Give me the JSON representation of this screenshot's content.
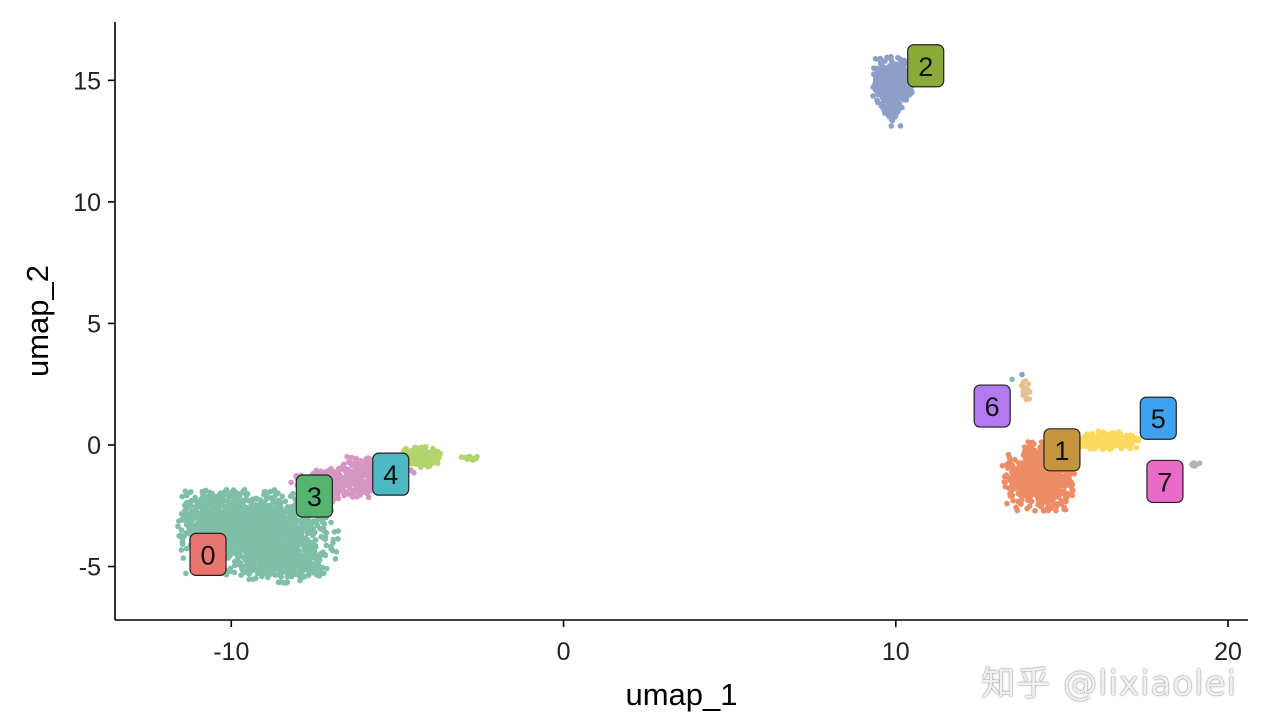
{
  "chart_data": {
    "type": "scatter",
    "title": "",
    "xlabel": "umap_1",
    "ylabel": "umap_2",
    "xlim": [
      -13.5,
      20.6
    ],
    "ylim": [
      -7.2,
      17.4
    ],
    "xticks": [
      -10,
      0,
      10,
      20
    ],
    "xtick_labels": [
      "-10",
      "0",
      "10",
      "20"
    ],
    "yticks": [
      -5,
      0,
      5,
      10,
      15
    ],
    "ytick_labels": [
      "-5",
      "0",
      "5",
      "10",
      "15"
    ],
    "grid": false,
    "legend": "none",
    "clusters": [
      {
        "label": "0",
        "color": "#7fbfa8",
        "label_x": -10.7,
        "label_y": -4.5,
        "blobs": [
          {
            "cx": -9.2,
            "cy": -3.6,
            "rx": 2.2,
            "ry": 1.6,
            "n": 1500
          },
          {
            "cx": -8.3,
            "cy": -4.8,
            "rx": 1.1,
            "ry": 0.8,
            "n": 350
          },
          {
            "cx": -10.6,
            "cy": -2.8,
            "rx": 0.8,
            "ry": 0.9,
            "n": 200
          }
        ]
      },
      {
        "label": "1",
        "color": "#ec8d66",
        "label_x": 15.0,
        "label_y": -0.2,
        "blobs": [
          {
            "cx": 14.3,
            "cy": -1.3,
            "rx": 1.0,
            "ry": 1.3,
            "n": 700
          },
          {
            "cx": 14.9,
            "cy": -0.3,
            "rx": 0.5,
            "ry": 0.4,
            "n": 120
          }
        ]
      },
      {
        "label": "2",
        "color": "#8d9fc8",
        "label_x": 10.9,
        "label_y": 15.6,
        "blobs": [
          {
            "cx": 9.9,
            "cy": 14.9,
            "rx": 0.55,
            "ry": 1.0,
            "n": 420
          },
          {
            "cx": 9.9,
            "cy": 13.7,
            "rx": 0.25,
            "ry": 0.55,
            "n": 60
          }
        ]
      },
      {
        "label": "3",
        "color": "#d696c4",
        "label_x": -7.5,
        "label_y": -2.1,
        "blobs": [
          {
            "cx": -6.8,
            "cy": -1.6,
            "rx": 1.3,
            "ry": 0.6,
            "n": 350
          },
          {
            "cx": -5.6,
            "cy": -1.0,
            "rx": 1.0,
            "ry": 0.5,
            "n": 250
          }
        ]
      },
      {
        "label": "4",
        "color": "#b2d46c",
        "label_x": -5.2,
        "label_y": -1.2,
        "blobs": [
          {
            "cx": -4.3,
            "cy": -0.5,
            "rx": 0.55,
            "ry": 0.4,
            "n": 200
          },
          {
            "cx": -2.8,
            "cy": -0.55,
            "rx": 0.3,
            "ry": 0.12,
            "n": 10
          }
        ]
      },
      {
        "label": "5",
        "color": "#fad95c",
        "label_x": 17.9,
        "label_y": 1.1,
        "blobs": [
          {
            "cx": 16.4,
            "cy": 0.2,
            "rx": 0.9,
            "ry": 0.35,
            "n": 200
          }
        ]
      },
      {
        "label": "6",
        "color": "#e3c290",
        "label_x": 12.9,
        "label_y": 1.6,
        "blobs": [
          {
            "cx": 13.9,
            "cy": 2.2,
            "rx": 0.12,
            "ry": 0.45,
            "n": 25
          }
        ]
      },
      {
        "label": "7",
        "color": "#b3b3b3",
        "label_x": 18.1,
        "label_y": -1.5,
        "blobs": [
          {
            "cx": 19.0,
            "cy": -0.8,
            "rx": 0.15,
            "ry": 0.08,
            "n": 12
          }
        ]
      }
    ],
    "label_box_colors": {
      "0": "#e8756e",
      "1": "#c4953c",
      "2": "#8aab37",
      "3": "#55b46f",
      "4": "#4cb8c3",
      "5": "#3ea2f1",
      "6": "#b17af0",
      "7": "#e96bc7"
    }
  },
  "watermark": "知乎 @lixiaolei"
}
